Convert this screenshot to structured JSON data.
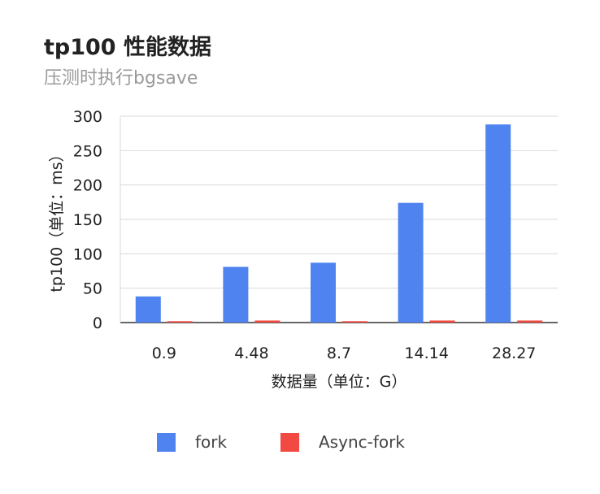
{
  "chart_data": {
    "type": "bar",
    "title": "tp100 性能数据",
    "subtitle": "压测时执行bgsave",
    "xlabel": "数据量（单位：G）",
    "ylabel": "tp100（单位：ms）",
    "categories": [
      "0.9",
      "4.48",
      "8.7",
      "14.14",
      "28.27"
    ],
    "series": [
      {
        "name": "fork",
        "color": "#4f83f0",
        "values": [
          38,
          81,
          87,
          174,
          288
        ]
      },
      {
        "name": "Async-fork",
        "color": "#f24a42",
        "values": [
          2,
          3,
          2,
          3,
          3
        ]
      }
    ],
    "ylim": [
      0,
      300
    ],
    "yticks": [
      0,
      50,
      100,
      150,
      200,
      250,
      300
    ],
    "grid": true,
    "legend_position": "bottom"
  }
}
